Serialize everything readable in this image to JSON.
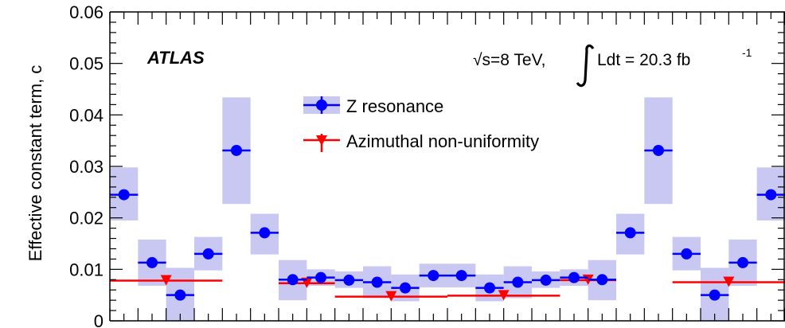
{
  "chart_data": {
    "type": "scatter",
    "ylabel": "Effective constant term, c",
    "ylim": [
      0,
      0.06
    ],
    "y_ticks": [
      "0",
      "0.01",
      "0.02",
      "0.03",
      "0.04",
      "0.05",
      "0.06"
    ],
    "x_tick_labels_shown": false,
    "annotations": {
      "experiment": "ATLAS",
      "energy": "√s=8 TeV,",
      "lumi_left": "Ldt = 20.3 fb",
      "lumi_exp": "-1"
    },
    "series": [
      {
        "name": "Z resonance",
        "color": "#0000ff",
        "band_color": "#c8c8f2",
        "marker": "circle",
        "points": [
          {
            "x": [
              0,
              1
            ],
            "y": 0.0245,
            "band": [
              0.0195,
              0.0298
            ]
          },
          {
            "x": [
              1,
              2
            ],
            "y": 0.0113,
            "band": [
              0.0068,
              0.0158
            ]
          },
          {
            "x": [
              2,
              3
            ],
            "y": 0.005,
            "band": [
              0.0,
              0.0103
            ]
          },
          {
            "x": [
              3,
              4
            ],
            "y": 0.013,
            "band": [
              0.0098,
              0.0163
            ]
          },
          {
            "x": [
              4,
              5
            ],
            "y": 0.0331,
            "band": [
              0.0227,
              0.0434
            ]
          },
          {
            "x": [
              5,
              6
            ],
            "y": 0.0171,
            "band": [
              0.0129,
              0.0208
            ]
          },
          {
            "x": [
              6,
              7
            ],
            "y": 0.008,
            "band": [
              0.004,
              0.0118
            ]
          },
          {
            "x": [
              7,
              8
            ],
            "y": 0.0084,
            "band": [
              0.0068,
              0.01
            ]
          },
          {
            "x": [
              8,
              9
            ],
            "y": 0.0079,
            "band": [
              0.0064,
              0.0096
            ]
          },
          {
            "x": [
              9,
              10
            ],
            "y": 0.0075,
            "band": [
              0.0044,
              0.0106
            ]
          },
          {
            "x": [
              10,
              11
            ],
            "y": 0.0064,
            "band": [
              0.0038,
              0.009
            ]
          },
          {
            "x": [
              11,
              12
            ],
            "y": 0.0088,
            "band": [
              0.0065,
              0.0111
            ]
          },
          {
            "x": [
              12,
              13
            ],
            "y": 0.0088,
            "band": [
              0.0065,
              0.0111
            ]
          },
          {
            "x": [
              13,
              14
            ],
            "y": 0.0064,
            "band": [
              0.0038,
              0.009
            ]
          },
          {
            "x": [
              14,
              15
            ],
            "y": 0.0075,
            "band": [
              0.0044,
              0.0106
            ]
          },
          {
            "x": [
              15,
              16
            ],
            "y": 0.0079,
            "band": [
              0.0064,
              0.0096
            ]
          },
          {
            "x": [
              16,
              17
            ],
            "y": 0.0084,
            "band": [
              0.0068,
              0.01
            ]
          },
          {
            "x": [
              17,
              18
            ],
            "y": 0.008,
            "band": [
              0.004,
              0.0118
            ]
          },
          {
            "x": [
              18,
              19
            ],
            "y": 0.0171,
            "band": [
              0.0129,
              0.0208
            ]
          },
          {
            "x": [
              19,
              20
            ],
            "y": 0.0331,
            "band": [
              0.0227,
              0.0434
            ]
          },
          {
            "x": [
              20,
              21
            ],
            "y": 0.013,
            "band": [
              0.0098,
              0.0163
            ]
          },
          {
            "x": [
              21,
              22
            ],
            "y": 0.005,
            "band": [
              0.0,
              0.0103
            ]
          },
          {
            "x": [
              22,
              23
            ],
            "y": 0.0113,
            "band": [
              0.0068,
              0.0158
            ]
          },
          {
            "x": [
              23,
              24
            ],
            "y": 0.0245,
            "band": [
              0.0195,
              0.0298
            ]
          }
        ]
      },
      {
        "name": "Azimuthal non-uniformity",
        "color": "#ff0000",
        "marker": "triangle-down",
        "points": [
          {
            "x": [
              0,
              4
            ],
            "y": 0.0078
          },
          {
            "x": [
              6,
              8
            ],
            "y": 0.0073
          },
          {
            "x": [
              8,
              12
            ],
            "y": 0.0047
          },
          {
            "x": [
              12,
              16
            ],
            "y": 0.0049
          },
          {
            "x": [
              16,
              18
            ],
            "y": 0.0079
          },
          {
            "x": [
              20,
              24
            ],
            "y": 0.0075
          }
        ]
      }
    ],
    "legend": "top-center",
    "grid": false
  }
}
